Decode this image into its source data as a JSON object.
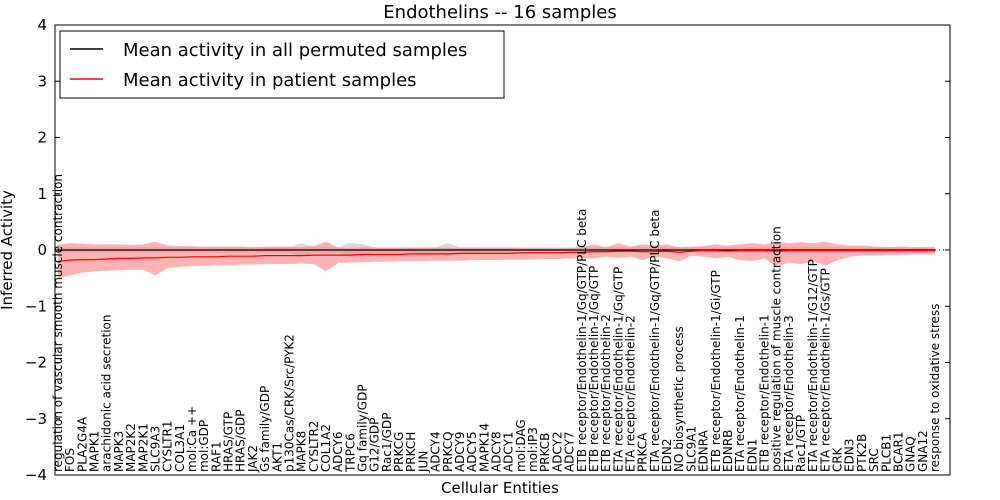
{
  "chart_data": {
    "type": "line",
    "title": "Endothelins -- 16 samples",
    "xlabel": "Cellular Entities",
    "ylabel": "Inferred Activity",
    "ylim": [
      -4,
      4
    ],
    "yticks": [
      "−4",
      "−3",
      "−2",
      "−1",
      "0",
      "1",
      "2",
      "3",
      "4"
    ],
    "ytick_values": [
      -4,
      -3,
      -2,
      -1,
      0,
      1,
      2,
      3,
      4
    ],
    "legend_position": "top-left",
    "categories": [
      "regulation of vascular smooth muscle contraction",
      "FOS",
      "PLA2G4A",
      "MAPK1",
      "arachidonic acid secretion",
      "MAPK3",
      "MAP2K2",
      "MAP2K1",
      "SLC9A3",
      "CYSLTR1",
      "COL3A1",
      "mol:Ca ++",
      "mol:GDP",
      "RAF1",
      "HRAS/GTP",
      "HRAS/GDP",
      "JAK2",
      "Gs family/GDP",
      "AKT1",
      "p130Cas/CRK/Src/PYK2",
      "MAPK8",
      "CYSLTR2",
      "COL1A2",
      "ADCY6",
      "TRPC6",
      "Gq family/GDP",
      "G12/GDP",
      "Rac1/GDP",
      "PRKCG",
      "PRKCH",
      "JUN",
      "ADCY4",
      "PRKCQ",
      "ADCY9",
      "ADCY5",
      "MAPK14",
      "ADCY8",
      "ADCY1",
      "mol:DAG",
      "mol:IP3",
      "PRKCB",
      "ADCY2",
      "ADCY7",
      "ETB receptor/Endothelin-1/Gq/GTP/PLC beta",
      "ETB receptor/Endothelin-1/Gq/GTP",
      "ETB receptor/Endothelin-2",
      "ETA receptor/Endothelin-1/Gq/GTP",
      "ETA receptor/Endothelin-2",
      "PRKCA",
      "ETA receptor/Endothelin-1/Gq/GTP/PLC beta",
      "EDN2",
      "NO biosynthetic process",
      "SLC9A1",
      "EDNRA",
      "ETB receptor/Endothelin-1/Gi/GTP",
      "EDNRB",
      "ETA receptor/Endothelin-1",
      "EDN1",
      "ETB receptor/Endothelin-1",
      "positive regulation of muscle contraction",
      "ETA receptor/Endothelin-3",
      "Rac1/GTP",
      "ETA receptor/Endothelin-1/G12/GTP",
      "ETA receptor/Endothelin-1/Gs/GTP",
      "CRK",
      "EDN3",
      "PTK2B",
      "SRC",
      "PLCB1",
      "BCAR1",
      "GNAQ",
      "GNA12",
      "response to oxidative stress"
    ],
    "series": [
      {
        "name": "Mean activity in all permuted samples",
        "color": "#000000",
        "values": [
          0.0,
          0.0,
          0.0,
          0.0,
          0.0,
          0.0,
          0.0,
          0.0,
          0.0,
          0.0,
          0.0,
          0.0,
          0.0,
          0.0,
          0.0,
          0.0,
          0.0,
          0.0,
          0.0,
          0.0,
          0.0,
          0.0,
          0.0,
          0.0,
          0.0,
          0.0,
          0.0,
          0.0,
          0.0,
          0.0,
          0.0,
          0.0,
          0.0,
          0.0,
          0.0,
          0.0,
          0.0,
          0.0,
          0.0,
          0.0,
          0.0,
          0.0,
          0.0,
          0.0,
          0.0,
          0.0,
          0.0,
          0.0,
          0.0,
          0.0,
          0.0,
          0.0,
          0.0,
          0.0,
          0.0,
          0.0,
          0.0,
          0.0,
          0.0,
          0.0,
          0.0,
          0.0,
          0.0,
          0.0,
          0.0,
          0.0,
          0.0,
          0.0,
          0.0,
          0.0,
          0.0,
          0.0,
          0.0
        ]
      },
      {
        "name": "Mean activity in patient samples",
        "color": "#ff0000",
        "values": [
          -0.2,
          -0.18,
          -0.17,
          -0.17,
          -0.16,
          -0.15,
          -0.15,
          -0.14,
          -0.14,
          -0.13,
          -0.13,
          -0.12,
          -0.12,
          -0.12,
          -0.11,
          -0.11,
          -0.11,
          -0.1,
          -0.1,
          -0.1,
          -0.1,
          -0.09,
          -0.09,
          -0.09,
          -0.09,
          -0.08,
          -0.08,
          -0.08,
          -0.08,
          -0.07,
          -0.07,
          -0.07,
          -0.07,
          -0.06,
          -0.06,
          -0.06,
          -0.06,
          -0.06,
          -0.05,
          -0.05,
          -0.05,
          -0.05,
          -0.04,
          -0.04,
          -0.03,
          -0.03,
          -0.02,
          -0.02,
          -0.03,
          -0.03,
          -0.02,
          -0.04,
          -0.02,
          -0.01,
          -0.01,
          -0.02,
          -0.01,
          -0.01,
          -0.01,
          -0.02,
          -0.01,
          -0.01,
          -0.01,
          -0.01,
          -0.01,
          -0.01,
          -0.01,
          -0.01,
          -0.01,
          -0.01,
          -0.01,
          -0.01,
          -0.01
        ]
      }
    ],
    "patient_band": {
      "upper": [
        0.1,
        0.12,
        0.11,
        0.1,
        0.1,
        0.1,
        0.09,
        0.1,
        0.15,
        0.08,
        0.07,
        0.07,
        0.06,
        0.06,
        0.06,
        0.06,
        0.05,
        0.06,
        0.06,
        0.06,
        0.05,
        0.07,
        0.15,
        0.04,
        0.04,
        0.05,
        0.04,
        0.04,
        0.04,
        0.04,
        0.04,
        0.04,
        0.04,
        0.04,
        0.04,
        0.04,
        0.04,
        0.04,
        0.03,
        0.03,
        0.03,
        0.03,
        0.03,
        0.05,
        0.1,
        0.05,
        0.12,
        0.06,
        0.1,
        0.08,
        0.1,
        0.05,
        0.06,
        0.07,
        0.1,
        0.08,
        0.1,
        0.12,
        0.1,
        0.15,
        0.12,
        0.14,
        0.12,
        0.15,
        0.1,
        0.08,
        0.08,
        0.06,
        0.05,
        0.06,
        0.05,
        0.05,
        0.05
      ],
      "lower": [
        -0.5,
        -0.45,
        -0.4,
        -0.38,
        -0.37,
        -0.36,
        -0.35,
        -0.35,
        -0.45,
        -0.32,
        -0.3,
        -0.29,
        -0.28,
        -0.27,
        -0.27,
        -0.26,
        -0.26,
        -0.25,
        -0.25,
        -0.25,
        -0.24,
        -0.25,
        -0.38,
        -0.23,
        -0.22,
        -0.22,
        -0.21,
        -0.21,
        -0.2,
        -0.2,
        -0.2,
        -0.19,
        -0.19,
        -0.19,
        -0.18,
        -0.18,
        -0.18,
        -0.17,
        -0.17,
        -0.17,
        -0.16,
        -0.16,
        -0.15,
        -0.14,
        -0.15,
        -0.12,
        -0.14,
        -0.12,
        -0.18,
        -0.12,
        -0.15,
        -0.2,
        -0.1,
        -0.12,
        -0.15,
        -0.12,
        -0.18,
        -0.2,
        -0.15,
        -0.3,
        -0.22,
        -0.25,
        -0.2,
        -0.28,
        -0.18,
        -0.12,
        -0.1,
        -0.1,
        -0.09,
        -0.09,
        -0.08,
        -0.08,
        -0.08
      ]
    },
    "permuted_band": {
      "upper": [
        0.05,
        0.05,
        0.05,
        0.05,
        0.05,
        0.05,
        0.05,
        0.05,
        0.05,
        0.05,
        0.05,
        0.05,
        0.05,
        0.05,
        0.05,
        0.05,
        0.05,
        0.05,
        0.05,
        0.05,
        0.12,
        0.05,
        0.05,
        0.05,
        0.13,
        0.1,
        0.05,
        0.05,
        0.05,
        0.05,
        0.05,
        0.05,
        0.12,
        0.05,
        0.05,
        0.05,
        0.05,
        0.05,
        0.05,
        0.05,
        0.05,
        0.05,
        0.05,
        0.05,
        0.05,
        0.05,
        0.05,
        0.05,
        0.05,
        0.05,
        0.05,
        0.05,
        0.05,
        0.05,
        0.05,
        0.05,
        0.05,
        0.05,
        0.05,
        0.05,
        0.05,
        0.05,
        0.05,
        0.05,
        0.05,
        0.05,
        0.05,
        0.05,
        0.05,
        0.05,
        0.05,
        0.05,
        0.05
      ],
      "lower": [
        -0.05,
        -0.05,
        -0.05,
        -0.05,
        -0.05,
        -0.05,
        -0.05,
        -0.05,
        -0.05,
        -0.05,
        -0.05,
        -0.05,
        -0.05,
        -0.05,
        -0.05,
        -0.05,
        -0.05,
        -0.05,
        -0.05,
        -0.05,
        -0.12,
        -0.05,
        -0.05,
        -0.05,
        -0.13,
        -0.1,
        -0.05,
        -0.05,
        -0.05,
        -0.05,
        -0.05,
        -0.05,
        -0.12,
        -0.05,
        -0.05,
        -0.05,
        -0.05,
        -0.05,
        -0.05,
        -0.05,
        -0.05,
        -0.05,
        -0.05,
        -0.05,
        -0.05,
        -0.05,
        -0.05,
        -0.05,
        -0.05,
        -0.05,
        -0.05,
        -0.05,
        -0.05,
        -0.05,
        -0.05,
        -0.05,
        -0.05,
        -0.05,
        -0.05,
        -0.05,
        -0.05,
        -0.05,
        -0.05,
        -0.05,
        -0.05,
        -0.05,
        -0.05,
        -0.05,
        -0.05,
        -0.05,
        -0.05,
        -0.05,
        -0.05
      ]
    },
    "colors": {
      "patient_fill": "#ff8080",
      "permuted_fill": "#c8c8c8",
      "axes": "#000000"
    }
  }
}
